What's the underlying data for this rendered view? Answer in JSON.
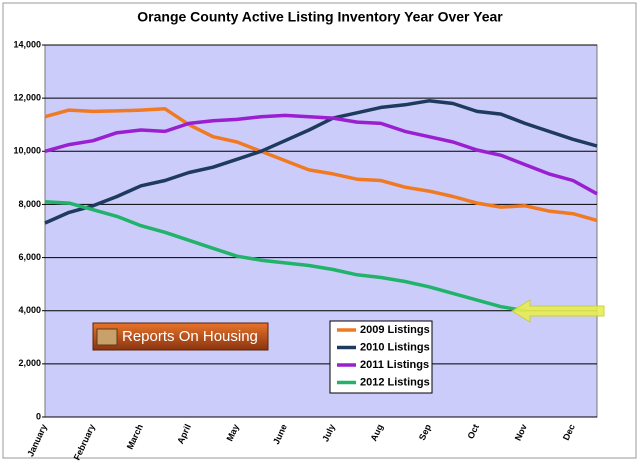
{
  "chart_data": {
    "type": "line",
    "title": "Orange County Active Listing Inventory Year Over Year",
    "logo_text": "Reports On Housing",
    "categories": [
      "January",
      null,
      "February",
      null,
      "March",
      null,
      "April",
      null,
      "May",
      null,
      "June",
      null,
      "July",
      null,
      "Aug",
      null,
      "Sep",
      null,
      "Oct",
      null,
      "Nov",
      null,
      "Dec",
      null
    ],
    "series": [
      {
        "name": "2009 Listings",
        "color": "#f07a22",
        "values": [
          11300,
          11550,
          11500,
          11520,
          11550,
          11600,
          11000,
          10550,
          10350,
          10000,
          9650,
          9300,
          9150,
          8950,
          8900,
          8650,
          8500,
          8300,
          8050,
          7900,
          7950,
          7750,
          7650,
          7400
        ]
      },
      {
        "name": "2010 Listings",
        "color": "#1f3a5f",
        "values": [
          7300,
          7700,
          7950,
          8300,
          8700,
          8900,
          9200,
          9400,
          9700,
          10000,
          10400,
          10800,
          11250,
          11450,
          11650,
          11750,
          11900,
          11800,
          11500,
          11400,
          11050,
          10750,
          10450,
          10200
        ]
      },
      {
        "name": "2011 Listings",
        "color": "#9a1fd0",
        "values": [
          10000,
          10250,
          10400,
          10700,
          10800,
          10750,
          11050,
          11150,
          11200,
          11300,
          11350,
          11300,
          11250,
          11100,
          11050,
          10750,
          10550,
          10350,
          10050,
          9850,
          9500,
          9150,
          8900,
          8400
        ]
      },
      {
        "name": "2012 Listings",
        "color": "#22b36a",
        "values": [
          8100,
          8050,
          7800,
          7550,
          7200,
          6950,
          6650,
          6350,
          6050,
          5900,
          5800,
          5700,
          5550,
          5350,
          5250,
          5100,
          4900,
          4650,
          4400,
          4150,
          4000,
          null,
          null,
          null
        ]
      }
    ],
    "ylim": [
      0,
      14000
    ],
    "yticks": [
      0,
      {
        "value": 2000,
        "label": "2,000"
      },
      {
        "value": 4000,
        "label": "4,000"
      },
      {
        "value": 6000,
        "label": "6,000"
      },
      {
        "value": 8000,
        "label": "8,000"
      },
      {
        "value": 10000,
        "label": "10,000"
      },
      {
        "value": 12000,
        "label": "12,000"
      },
      {
        "value": 14000,
        "label": "14,000"
      }
    ],
    "grid": true,
    "plot_color": "#ccccfa"
  }
}
